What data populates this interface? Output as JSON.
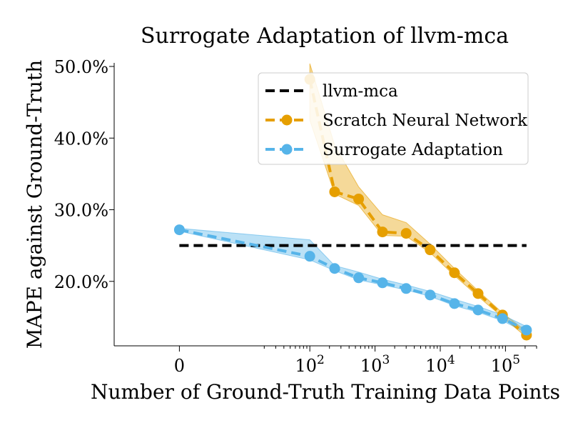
{
  "chart_data": {
    "type": "line",
    "title": "Surrogate Adaptation of llvm-mca",
    "xlabel": "Number of Ground-Truth Training Data Points",
    "ylabel": "MAPE against Ground-Truth",
    "x_scale": "symlog",
    "xlim": [
      -10,
      300000
    ],
    "ylim": [
      11.0,
      50.5
    ],
    "yticks": [
      {
        "value": 20,
        "label": "20.0%"
      },
      {
        "value": 30,
        "label": "30.0%"
      },
      {
        "value": 40,
        "label": "40.0%"
      },
      {
        "value": 50,
        "label": "50.0%"
      }
    ],
    "xticks": [
      {
        "value": 0,
        "base": "0",
        "exp": ""
      },
      {
        "value": 100,
        "base": "10",
        "exp": "2"
      },
      {
        "value": 1000,
        "base": "10",
        "exp": "3"
      },
      {
        "value": 10000,
        "base": "10",
        "exp": "4"
      },
      {
        "value": 100000,
        "base": "10",
        "exp": "5"
      }
    ],
    "legend_position": "upper-right",
    "series": [
      {
        "name": "llvm-mca",
        "style": "dashed",
        "color": "#000000",
        "x": [
          0,
          210000
        ],
        "y": [
          25.0,
          25.0
        ]
      },
      {
        "name": "Scratch Neural Network",
        "style": "dashed-markers",
        "color": "#E69F00",
        "x": [
          100,
          240,
          560,
          1300,
          3000,
          7000,
          16500,
          38000,
          90000,
          210000
        ],
        "y": [
          48.2,
          32.5,
          31.5,
          26.9,
          26.7,
          24.4,
          21.2,
          18.3,
          15.3,
          12.5
        ],
        "band_upper": [
          50.4,
          39.0,
          33.2,
          29.3,
          28.2,
          25.2,
          21.8,
          18.7,
          15.6,
          13.0
        ],
        "band_lower": [
          42.5,
          32.2,
          30.6,
          26.4,
          26.3,
          24.0,
          20.8,
          17.9,
          15.0,
          12.2
        ]
      },
      {
        "name": "Surrogate Adaptation",
        "style": "dashed-markers",
        "color": "#56B4E9",
        "x": [
          0,
          100,
          240,
          560,
          1300,
          3000,
          7000,
          16500,
          38000,
          90000,
          210000
        ],
        "y": [
          27.2,
          23.5,
          21.8,
          20.5,
          19.8,
          19.0,
          18.1,
          16.9,
          16.0,
          14.8,
          13.2
        ],
        "band_upper": [
          27.4,
          25.8,
          22.2,
          21.3,
          20.3,
          19.5,
          18.6,
          17.5,
          16.5,
          15.3,
          13.7
        ],
        "band_lower": [
          27.0,
          23.0,
          21.5,
          20.2,
          19.5,
          18.8,
          17.9,
          16.6,
          15.7,
          14.5,
          12.8
        ]
      }
    ]
  }
}
